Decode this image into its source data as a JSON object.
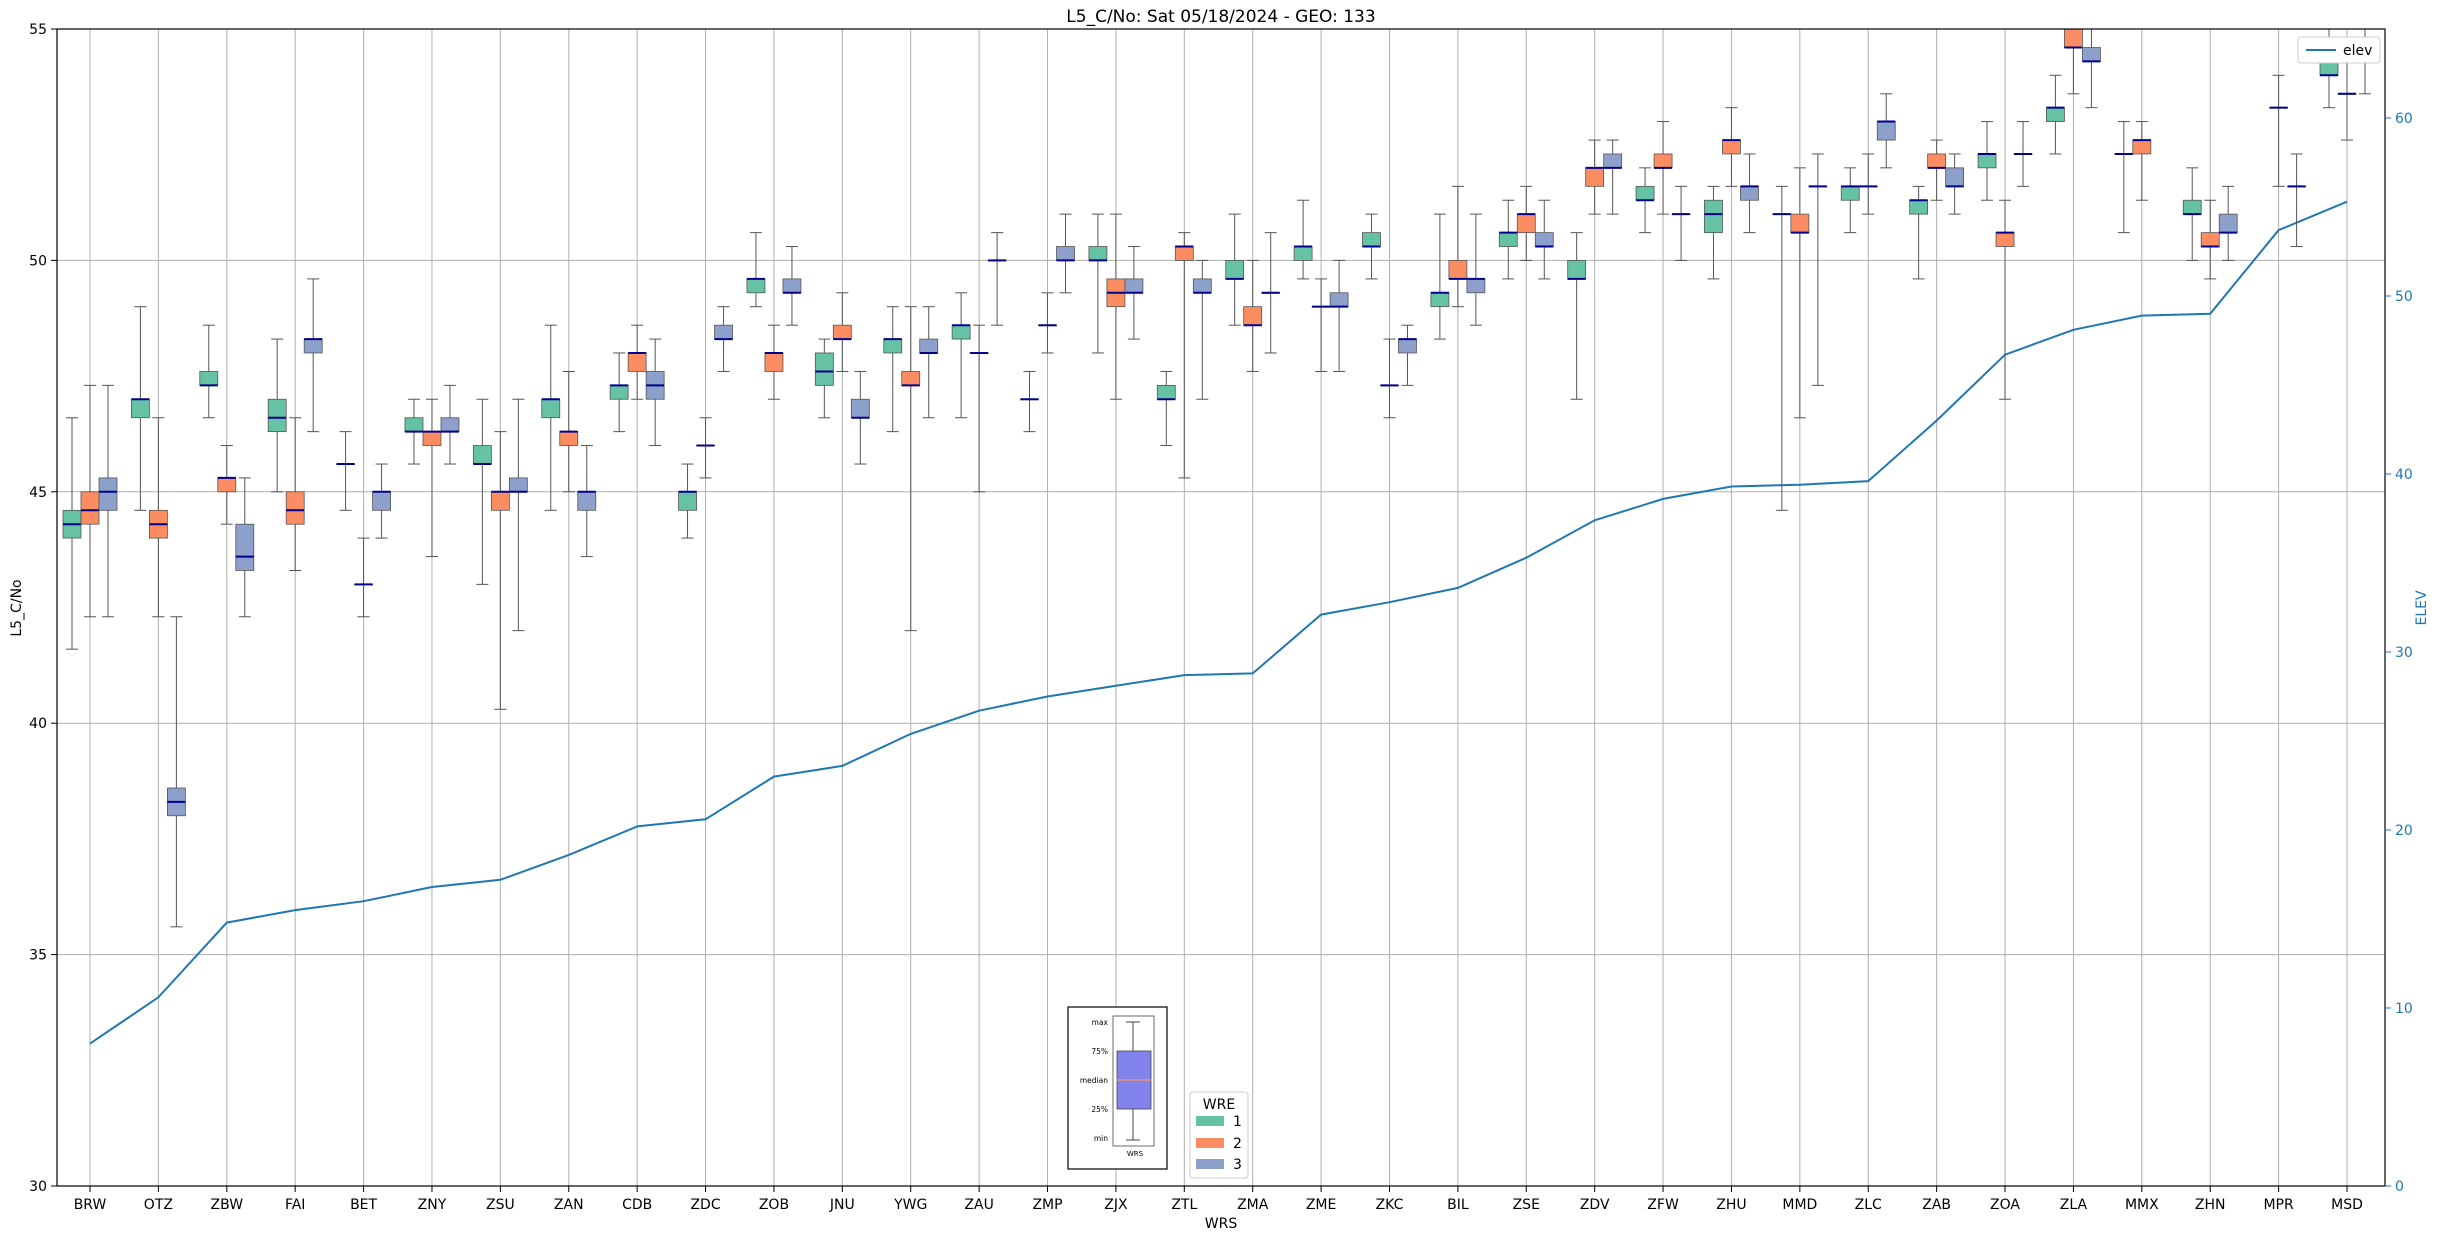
{
  "chart_data": {
    "type": "box",
    "title": "L5_C/No: Sat 05/18/2024 - GEO: 133",
    "xlabel": "WRS",
    "ylabel": "L5_C/No",
    "y2label": "ELEV",
    "ylim": [
      30,
      55
    ],
    "y2lim": [
      0,
      65
    ],
    "yticks": [
      30,
      35,
      40,
      45,
      50,
      55
    ],
    "y2ticks": [
      0,
      10,
      20,
      30,
      40,
      50,
      60
    ],
    "grid": true,
    "categories": [
      "BRW",
      "OTZ",
      "ZBW",
      "FAI",
      "BET",
      "ZNY",
      "ZSU",
      "ZAN",
      "CDB",
      "ZDC",
      "ZOB",
      "JNU",
      "YWG",
      "ZAU",
      "ZMP",
      "ZJX",
      "ZTL",
      "ZMA",
      "ZME",
      "ZKC",
      "BIL",
      "ZSE",
      "ZDV",
      "ZFW",
      "ZHU",
      "MMD",
      "ZLC",
      "ZAB",
      "ZOA",
      "ZLA",
      "MMX",
      "ZHN",
      "MPR",
      "MSD"
    ],
    "wre_colors": {
      "1": "#66c2a5",
      "2": "#fc8d62",
      "3": "#8da0cb"
    },
    "series": [
      {
        "cat": "BRW",
        "wre": "1",
        "min": 41.6,
        "q1": 44.0,
        "med": 44.3,
        "q3": 44.6,
        "max": 46.6
      },
      {
        "cat": "BRW",
        "wre": "2",
        "min": 42.3,
        "q1": 44.3,
        "med": 44.6,
        "q3": 45.0,
        "max": 47.3
      },
      {
        "cat": "BRW",
        "wre": "3",
        "min": 42.3,
        "q1": 44.6,
        "med": 45.0,
        "q3": 45.3,
        "max": 47.3
      },
      {
        "cat": "OTZ",
        "wre": "1",
        "min": 44.6,
        "q1": 46.6,
        "med": 47.0,
        "q3": 47.0,
        "max": 49.0
      },
      {
        "cat": "OTZ",
        "wre": "2",
        "min": 42.3,
        "q1": 44.0,
        "med": 44.3,
        "q3": 44.6,
        "max": 46.6
      },
      {
        "cat": "OTZ",
        "wre": "3",
        "min": 35.6,
        "q1": 38.0,
        "med": 38.3,
        "q3": 38.6,
        "max": 42.3
      },
      {
        "cat": "ZBW",
        "wre": "1",
        "min": 46.6,
        "q1": 47.3,
        "med": 47.3,
        "q3": 47.6,
        "max": 48.6
      },
      {
        "cat": "ZBW",
        "wre": "2",
        "min": 44.3,
        "q1": 45.0,
        "med": 45.3,
        "q3": 45.3,
        "max": 46.0
      },
      {
        "cat": "ZBW",
        "wre": "3",
        "min": 42.3,
        "q1": 43.3,
        "med": 43.6,
        "q3": 44.3,
        "max": 45.3
      },
      {
        "cat": "FAI",
        "wre": "1",
        "min": 45.0,
        "q1": 46.3,
        "med": 46.6,
        "q3": 47.0,
        "max": 48.3
      },
      {
        "cat": "FAI",
        "wre": "2",
        "min": 43.3,
        "q1": 44.3,
        "med": 44.6,
        "q3": 45.0,
        "max": 46.6
      },
      {
        "cat": "FAI",
        "wre": "3",
        "min": 46.3,
        "q1": 48.0,
        "med": 48.3,
        "q3": 48.3,
        "max": 49.6
      },
      {
        "cat": "BET",
        "wre": "2",
        "min": 42.3,
        "q1": 43.0,
        "med": 43.0,
        "q3": 43.0,
        "max": 44.0
      },
      {
        "cat": "BET",
        "wre": "1",
        "min": 44.6,
        "q1": 45.6,
        "med": 45.6,
        "q3": 45.6,
        "max": 46.3
      },
      {
        "cat": "BET",
        "wre": "3",
        "min": 44.0,
        "q1": 44.6,
        "med": 45.0,
        "q3": 45.0,
        "max": 45.6
      },
      {
        "cat": "ZNY",
        "wre": "1",
        "min": 45.6,
        "q1": 46.3,
        "med": 46.3,
        "q3": 46.6,
        "max": 47.0
      },
      {
        "cat": "ZNY",
        "wre": "2",
        "min": 43.6,
        "q1": 46.0,
        "med": 46.3,
        "q3": 46.3,
        "max": 47.0
      },
      {
        "cat": "ZNY",
        "wre": "3",
        "min": 45.6,
        "q1": 46.3,
        "med": 46.3,
        "q3": 46.6,
        "max": 47.3
      },
      {
        "cat": "ZSU",
        "wre": "1",
        "min": 43.0,
        "q1": 45.6,
        "med": 45.6,
        "q3": 46.0,
        "max": 47.0
      },
      {
        "cat": "ZSU",
        "wre": "2",
        "min": 40.3,
        "q1": 44.6,
        "med": 45.0,
        "q3": 45.0,
        "max": 46.3
      },
      {
        "cat": "ZSU",
        "wre": "3",
        "min": 42.0,
        "q1": 45.0,
        "med": 45.0,
        "q3": 45.3,
        "max": 47.0
      },
      {
        "cat": "ZAN",
        "wre": "1",
        "min": 44.6,
        "q1": 46.6,
        "med": 47.0,
        "q3": 47.0,
        "max": 48.6
      },
      {
        "cat": "ZAN",
        "wre": "2",
        "min": 45.0,
        "q1": 46.0,
        "med": 46.3,
        "q3": 46.3,
        "max": 47.6
      },
      {
        "cat": "ZAN",
        "wre": "3",
        "min": 43.6,
        "q1": 44.6,
        "med": 45.0,
        "q3": 45.0,
        "max": 46.0
      },
      {
        "cat": "CDB",
        "wre": "1",
        "min": 46.3,
        "q1": 47.0,
        "med": 47.3,
        "q3": 47.3,
        "max": 48.0
      },
      {
        "cat": "CDB",
        "wre": "2",
        "min": 47.0,
        "q1": 47.6,
        "med": 48.0,
        "q3": 48.0,
        "max": 48.6
      },
      {
        "cat": "CDB",
        "wre": "3",
        "min": 46.0,
        "q1": 47.0,
        "med": 47.3,
        "q3": 47.6,
        "max": 48.3
      },
      {
        "cat": "ZDC",
        "wre": "1",
        "min": 44.0,
        "q1": 44.6,
        "med": 45.0,
        "q3": 45.0,
        "max": 45.6
      },
      {
        "cat": "ZDC",
        "wre": "2",
        "min": 45.3,
        "q1": 46.0,
        "med": 46.0,
        "q3": 46.0,
        "max": 46.6
      },
      {
        "cat": "ZDC",
        "wre": "3",
        "min": 47.6,
        "q1": 48.3,
        "med": 48.3,
        "q3": 48.6,
        "max": 49.0
      },
      {
        "cat": "ZOB",
        "wre": "1",
        "min": 49.0,
        "q1": 49.3,
        "med": 49.6,
        "q3": 49.6,
        "max": 50.6
      },
      {
        "cat": "ZOB",
        "wre": "2",
        "min": 47.0,
        "q1": 47.6,
        "med": 48.0,
        "q3": 48.0,
        "max": 48.6
      },
      {
        "cat": "ZOB",
        "wre": "3",
        "min": 48.6,
        "q1": 49.3,
        "med": 49.3,
        "q3": 49.6,
        "max": 50.3
      },
      {
        "cat": "JNU",
        "wre": "1",
        "min": 46.6,
        "q1": 47.3,
        "med": 47.6,
        "q3": 48.0,
        "max": 48.3
      },
      {
        "cat": "JNU",
        "wre": "2",
        "min": 47.6,
        "q1": 48.3,
        "med": 48.3,
        "q3": 48.6,
        "max": 49.3
      },
      {
        "cat": "JNU",
        "wre": "3",
        "min": 45.6,
        "q1": 46.6,
        "med": 46.6,
        "q3": 47.0,
        "max": 47.6
      },
      {
        "cat": "YWG",
        "wre": "1",
        "min": 46.3,
        "q1": 48.0,
        "med": 48.3,
        "q3": 48.3,
        "max": 49.0
      },
      {
        "cat": "YWG",
        "wre": "2",
        "min": 42.0,
        "q1": 47.3,
        "med": 47.3,
        "q3": 47.6,
        "max": 49.0
      },
      {
        "cat": "YWG",
        "wre": "3",
        "min": 46.6,
        "q1": 48.0,
        "med": 48.0,
        "q3": 48.3,
        "max": 49.0
      },
      {
        "cat": "ZAU",
        "wre": "1",
        "min": 46.6,
        "q1": 48.3,
        "med": 48.6,
        "q3": 48.6,
        "max": 49.3
      },
      {
        "cat": "ZAU",
        "wre": "3",
        "min": 48.6,
        "q1": 50.0,
        "med": 50.0,
        "q3": 50.0,
        "max": 50.6
      },
      {
        "cat": "ZAU",
        "wre": "2",
        "min": 45.0,
        "q1": 48.0,
        "med": 48.0,
        "q3": 48.0,
        "max": 48.6
      },
      {
        "cat": "ZMP",
        "wre": "1",
        "min": 46.3,
        "q1": 47.0,
        "med": 47.0,
        "q3": 47.0,
        "max": 47.6
      },
      {
        "cat": "ZMP",
        "wre": "2",
        "min": 48.0,
        "q1": 48.6,
        "med": 48.6,
        "q3": 48.6,
        "max": 49.3
      },
      {
        "cat": "ZMP",
        "wre": "3",
        "min": 49.3,
        "q1": 50.0,
        "med": 50.0,
        "q3": 50.3,
        "max": 51.0
      },
      {
        "cat": "ZJX",
        "wre": "1",
        "min": 48.0,
        "q1": 50.0,
        "med": 50.0,
        "q3": 50.3,
        "max": 51.0
      },
      {
        "cat": "ZJX",
        "wre": "2",
        "min": 47.0,
        "q1": 49.0,
        "med": 49.3,
        "q3": 49.6,
        "max": 51.0
      },
      {
        "cat": "ZJX",
        "wre": "3",
        "min": 48.3,
        "q1": 49.3,
        "med": 49.3,
        "q3": 49.6,
        "max": 50.3
      },
      {
        "cat": "ZTL",
        "wre": "1",
        "min": 46.0,
        "q1": 47.0,
        "med": 47.0,
        "q3": 47.3,
        "max": 47.6
      },
      {
        "cat": "ZTL",
        "wre": "2",
        "min": 45.3,
        "q1": 50.0,
        "med": 50.3,
        "q3": 50.3,
        "max": 50.6
      },
      {
        "cat": "ZTL",
        "wre": "3",
        "min": 47.0,
        "q1": 49.3,
        "med": 49.3,
        "q3": 49.6,
        "max": 50.0
      },
      {
        "cat": "ZMA",
        "wre": "1",
        "min": 48.6,
        "q1": 49.6,
        "med": 49.6,
        "q3": 50.0,
        "max": 51.0
      },
      {
        "cat": "ZMA",
        "wre": "2",
        "min": 47.6,
        "q1": 48.6,
        "med": 48.6,
        "q3": 49.0,
        "max": 50.0
      },
      {
        "cat": "ZMA",
        "wre": "3",
        "min": 48.0,
        "q1": 49.3,
        "med": 49.3,
        "q3": 49.3,
        "max": 50.6
      },
      {
        "cat": "ZME",
        "wre": "1",
        "min": 49.6,
        "q1": 50.0,
        "med": 50.3,
        "q3": 50.3,
        "max": 51.3
      },
      {
        "cat": "ZME",
        "wre": "2",
        "min": 47.6,
        "q1": 49.0,
        "med": 49.0,
        "q3": 49.0,
        "max": 49.6
      },
      {
        "cat": "ZME",
        "wre": "3",
        "min": 47.6,
        "q1": 49.0,
        "med": 49.0,
        "q3": 49.3,
        "max": 50.0
      },
      {
        "cat": "ZKC",
        "wre": "1",
        "min": 49.6,
        "q1": 50.3,
        "med": 50.3,
        "q3": 50.6,
        "max": 51.0
      },
      {
        "cat": "ZKC",
        "wre": "2",
        "min": 46.6,
        "q1": 47.3,
        "med": 47.3,
        "q3": 47.3,
        "max": 48.3
      },
      {
        "cat": "ZKC",
        "wre": "3",
        "min": 47.3,
        "q1": 48.0,
        "med": 48.3,
        "q3": 48.3,
        "max": 48.6
      },
      {
        "cat": "BIL",
        "wre": "1",
        "min": 48.3,
        "q1": 49.0,
        "med": 49.3,
        "q3": 49.3,
        "max": 51.0
      },
      {
        "cat": "BIL",
        "wre": "2",
        "min": 49.0,
        "q1": 49.6,
        "med": 49.6,
        "q3": 50.0,
        "max": 51.6
      },
      {
        "cat": "BIL",
        "wre": "3",
        "min": 48.6,
        "q1": 49.3,
        "med": 49.6,
        "q3": 49.6,
        "max": 51.0
      },
      {
        "cat": "ZSE",
        "wre": "1",
        "min": 49.6,
        "q1": 50.3,
        "med": 50.6,
        "q3": 50.6,
        "max": 51.3
      },
      {
        "cat": "ZSE",
        "wre": "2",
        "min": 50.0,
        "q1": 50.6,
        "med": 51.0,
        "q3": 51.0,
        "max": 51.6
      },
      {
        "cat": "ZSE",
        "wre": "3",
        "min": 49.6,
        "q1": 50.3,
        "med": 50.3,
        "q3": 50.6,
        "max": 51.3
      },
      {
        "cat": "ZDV",
        "wre": "1",
        "min": 47.0,
        "q1": 49.6,
        "med": 49.6,
        "q3": 50.0,
        "max": 50.6
      },
      {
        "cat": "ZDV",
        "wre": "2",
        "min": 51.0,
        "q1": 51.6,
        "med": 52.0,
        "q3": 52.0,
        "max": 52.6
      },
      {
        "cat": "ZDV",
        "wre": "3",
        "min": 51.0,
        "q1": 52.0,
        "med": 52.0,
        "q3": 52.3,
        "max": 52.6
      },
      {
        "cat": "ZFW",
        "wre": "1",
        "min": 50.6,
        "q1": 51.3,
        "med": 51.3,
        "q3": 51.6,
        "max": 52.0
      },
      {
        "cat": "ZFW",
        "wre": "2",
        "min": 51.0,
        "q1": 52.0,
        "med": 52.0,
        "q3": 52.3,
        "max": 53.0
      },
      {
        "cat": "ZFW",
        "wre": "3",
        "min": 50.0,
        "q1": 51.0,
        "med": 51.0,
        "q3": 51.0,
        "max": 51.6
      },
      {
        "cat": "ZHU",
        "wre": "1",
        "min": 49.6,
        "q1": 50.6,
        "med": 51.0,
        "q3": 51.3,
        "max": 51.6
      },
      {
        "cat": "ZHU",
        "wre": "2",
        "min": 51.6,
        "q1": 52.3,
        "med": 52.6,
        "q3": 52.6,
        "max": 53.3
      },
      {
        "cat": "ZHU",
        "wre": "3",
        "min": 50.6,
        "q1": 51.3,
        "med": 51.6,
        "q3": 51.6,
        "max": 52.3
      },
      {
        "cat": "MMD",
        "wre": "1",
        "min": 44.6,
        "q1": 51.0,
        "med": 51.0,
        "q3": 51.0,
        "max": 51.6
      },
      {
        "cat": "MMD",
        "wre": "2",
        "min": 46.6,
        "q1": 50.6,
        "med": 50.6,
        "q3": 51.0,
        "max": 52.0
      },
      {
        "cat": "MMD",
        "wre": "3",
        "min": 47.3,
        "q1": 51.6,
        "med": 51.6,
        "q3": 51.6,
        "max": 52.3
      },
      {
        "cat": "ZLC",
        "wre": "1",
        "min": 50.6,
        "q1": 51.3,
        "med": 51.6,
        "q3": 51.6,
        "max": 52.0
      },
      {
        "cat": "ZLC",
        "wre": "2",
        "min": 51.0,
        "q1": 51.6,
        "med": 51.6,
        "q3": 51.6,
        "max": 52.3
      },
      {
        "cat": "ZLC",
        "wre": "3",
        "min": 52.0,
        "q1": 52.6,
        "med": 53.0,
        "q3": 53.0,
        "max": 53.6
      },
      {
        "cat": "ZAB",
        "wre": "1",
        "min": 49.6,
        "q1": 51.0,
        "med": 51.3,
        "q3": 51.3,
        "max": 51.6
      },
      {
        "cat": "ZAB",
        "wre": "2",
        "min": 51.3,
        "q1": 52.0,
        "med": 52.0,
        "q3": 52.3,
        "max": 52.6
      },
      {
        "cat": "ZAB",
        "wre": "3",
        "min": 51.0,
        "q1": 51.6,
        "med": 51.6,
        "q3": 52.0,
        "max": 52.3
      },
      {
        "cat": "ZOA",
        "wre": "1",
        "min": 51.3,
        "q1": 52.0,
        "med": 52.3,
        "q3": 52.3,
        "max": 53.0
      },
      {
        "cat": "ZOA",
        "wre": "2",
        "min": 47.0,
        "q1": 50.3,
        "med": 50.6,
        "q3": 50.6,
        "max": 51.3
      },
      {
        "cat": "ZOA",
        "wre": "3",
        "min": 51.6,
        "q1": 52.3,
        "med": 52.3,
        "q3": 52.3,
        "max": 53.0
      },
      {
        "cat": "ZLA",
        "wre": "1",
        "min": 52.3,
        "q1": 53.0,
        "med": 53.3,
        "q3": 53.3,
        "max": 54.0
      },
      {
        "cat": "ZLA",
        "wre": "2",
        "min": 53.6,
        "q1": 54.6,
        "med": 54.6,
        "q3": 55.0,
        "max": 55.0
      },
      {
        "cat": "ZLA",
        "wre": "3",
        "min": 53.3,
        "q1": 54.3,
        "med": 54.3,
        "q3": 54.6,
        "max": 55.0
      },
      {
        "cat": "MMX",
        "wre": "1",
        "min": 50.6,
        "q1": 52.3,
        "med": 52.3,
        "q3": 52.3,
        "max": 53.0
      },
      {
        "cat": "MMX",
        "wre": "2",
        "min": 51.3,
        "q1": 52.3,
        "med": 52.6,
        "q3": 52.6,
        "max": 53.0
      },
      {
        "cat": "ZHN",
        "wre": "1",
        "min": 50.0,
        "q1": 51.0,
        "med": 51.0,
        "q3": 51.3,
        "max": 52.0
      },
      {
        "cat": "ZHN",
        "wre": "2",
        "min": 49.6,
        "q1": 50.3,
        "med": 50.3,
        "q3": 50.6,
        "max": 51.3
      },
      {
        "cat": "ZHN",
        "wre": "3",
        "min": 50.0,
        "q1": 50.6,
        "med": 50.6,
        "q3": 51.0,
        "max": 51.6
      },
      {
        "cat": "MPR",
        "wre": "2",
        "min": 51.6,
        "q1": 53.3,
        "med": 53.3,
        "q3": 53.3,
        "max": 54.0
      },
      {
        "cat": "MPR",
        "wre": "3",
        "min": 50.3,
        "q1": 51.6,
        "med": 51.6,
        "q3": 51.6,
        "max": 52.3
      },
      {
        "cat": "MSD",
        "wre": "1",
        "min": 53.3,
        "q1": 54.0,
        "med": 54.0,
        "q3": 54.3,
        "max": 55.0
      },
      {
        "cat": "MSD",
        "wre": "2",
        "min": 52.6,
        "q1": 53.6,
        "med": 53.6,
        "q3": 53.6,
        "max": 54.6
      },
      {
        "cat": "MSD",
        "wre": "3",
        "min": 53.6,
        "q1": 54.3,
        "med": 54.3,
        "q3": 54.6,
        "max": 55.0
      }
    ],
    "elev_series": {
      "name": "elev",
      "color": "#1f77b4",
      "values": [
        8.0,
        10.6,
        14.8,
        15.5,
        16.0,
        16.8,
        17.2,
        18.6,
        20.2,
        20.6,
        23.0,
        23.6,
        25.4,
        26.7,
        27.5,
        28.1,
        28.7,
        28.8,
        32.1,
        32.8,
        33.6,
        35.3,
        37.4,
        38.6,
        39.3,
        39.4,
        39.6,
        43.0,
        46.7,
        48.1,
        48.9,
        49.0,
        53.7,
        55.3
      ]
    },
    "legend_elev": {
      "label": "elev",
      "position": "top-right"
    },
    "legend_wre": {
      "title": "WRE",
      "items": [
        "1",
        "2",
        "3"
      ],
      "position": "bottom-center"
    },
    "key_box": {
      "labels": [
        "max",
        "75%",
        "median",
        "25%",
        "min"
      ],
      "caption": "WRS"
    }
  }
}
